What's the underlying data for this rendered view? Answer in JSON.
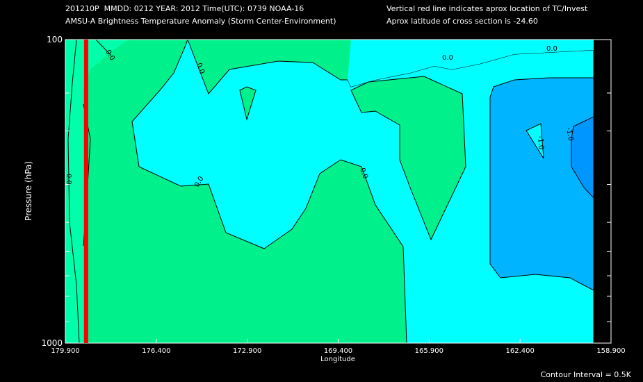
{
  "header": {
    "line1_left": "201210P  MMDD: 0212 YEAR: 2012 Time(UTC): 0739 NOAA-16",
    "line2_left": "AMSU-A Brightness Temperature Anomaly (Storm Center-Environment)",
    "line1_right": "Vertical red line indicates aprox location of TC/Invest",
    "line2_right": "Aprox latitude of cross section is -24.60"
  },
  "footer": {
    "contour_interval": "Contour Interval = 0.5K"
  },
  "colors": {
    "background": "#000000",
    "plot_background": "#ffffff",
    "band_pos_0_5": "#00f08c",
    "band_pos_0_5_light": "#00ffaa",
    "band_0_0": "#00ffff",
    "band_neg_0_5": "#00b4ff",
    "band_neg_1_0": "#0096ff",
    "tc_line": "#ff0000"
  },
  "chart_data": {
    "type": "contour",
    "title": "AMSU-A Brightness Temperature Anomaly (Storm Center-Environment)",
    "xlabel": "Longitude",
    "ylabel": "Pressure (hPa)",
    "x_ticks": [
      "179.900",
      "176.400",
      "172.900",
      "169.400",
      "165.900",
      "162.400",
      "158.900"
    ],
    "x_tick_values": [
      179.9,
      176.4,
      172.9,
      169.4,
      165.9,
      162.4,
      158.9
    ],
    "xlim": [
      179.9,
      158.9
    ],
    "y_ticks": [
      "100",
      "1000"
    ],
    "y_tick_values": [
      100,
      1000
    ],
    "ylim": [
      1000,
      100
    ],
    "y_scale": "log",
    "tc_longitude": 179.1,
    "contour_interval_K": 0.5,
    "contour_labels": [
      "0.0",
      "0.0",
      "0.0",
      "0.0",
      "0.0",
      "0.0",
      "0.0",
      "-1.0",
      "-1.0"
    ]
  }
}
